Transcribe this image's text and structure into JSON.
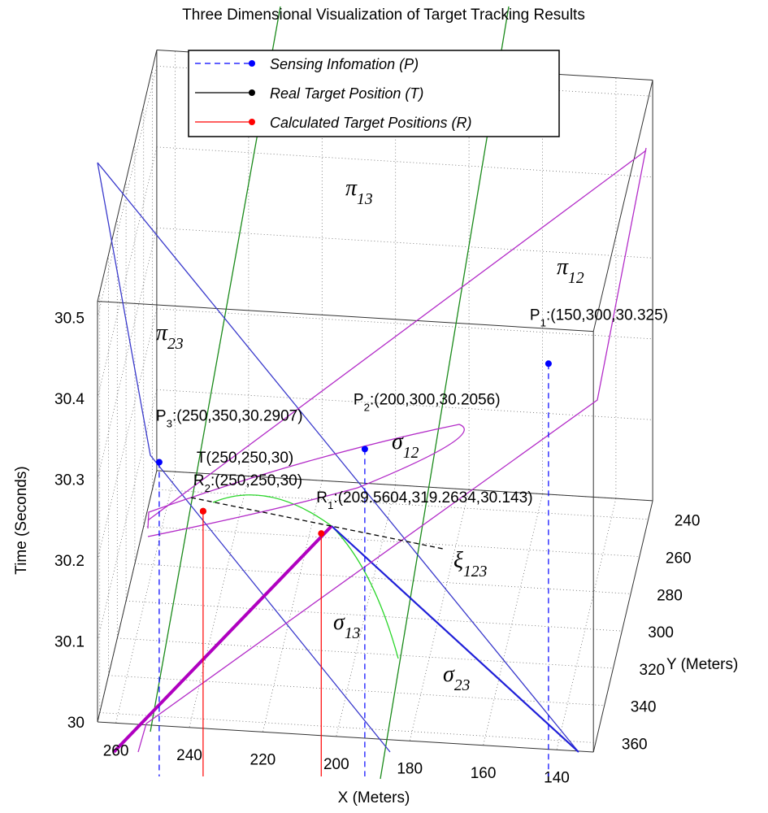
{
  "chart_data": {
    "type": "scatter3d",
    "title": "Three Dimensional Visualization of Target Tracking Results",
    "xlabel": "X (Meters)",
    "ylabel": "Y (Meters)",
    "zlabel": "Time (Seconds)",
    "xlim": [
      130,
      265
    ],
    "ylim": [
      230,
      365
    ],
    "zlim": [
      30,
      30.52
    ],
    "xticks": [
      140,
      160,
      180,
      200,
      220,
      240,
      260
    ],
    "yticks": [
      240,
      260,
      280,
      300,
      320,
      340,
      360
    ],
    "zticks": [
      30,
      30.1,
      30.2,
      30.3,
      30.4,
      30.5
    ],
    "grid": true,
    "series": [
      {
        "name": "Sensing Infomation (P)",
        "color": "#0000ff",
        "dashed": true,
        "points": [
          {
            "name": "P",
            "sub": "1",
            "x": 150,
            "y": 300,
            "z": 30.325,
            "label": ":(150,300,30.325)"
          },
          {
            "name": "P",
            "sub": "2",
            "x": 200,
            "y": 300,
            "z": 30.2056,
            "label": ":(200,300,30.2056)"
          },
          {
            "name": "P",
            "sub": "3",
            "x": 250,
            "y": 350,
            "z": 30.2907,
            "label": ":(250,350,30.2907)"
          }
        ]
      },
      {
        "name": "Real Target Position (T)",
        "color": "#000000",
        "dashed": false,
        "points": [
          {
            "name": "T",
            "x": 250,
            "y": 250,
            "z": 30,
            "label": "(250,250,30)"
          }
        ]
      },
      {
        "name": "Calculated Target Positions (R)",
        "color": "#ff0000",
        "dashed": false,
        "points": [
          {
            "name": "R",
            "sub": "2",
            "x": 250,
            "y": 250,
            "z": 30,
            "label": ":(250,250,30)"
          },
          {
            "name": "R",
            "sub": "1",
            "x": 209.5604,
            "y": 319.2634,
            "z": 30.143,
            "label": ":(209.5604,319.2634,30.143)"
          }
        ]
      }
    ],
    "annotations": [
      {
        "symbol": "π",
        "sub": "13"
      },
      {
        "symbol": "π",
        "sub": "12"
      },
      {
        "symbol": "π",
        "sub": "23"
      },
      {
        "symbol": "σ",
        "sub": "12"
      },
      {
        "symbol": "σ",
        "sub": "13"
      },
      {
        "symbol": "σ",
        "sub": "23"
      },
      {
        "symbol": "ξ",
        "sub": "123"
      }
    ]
  }
}
